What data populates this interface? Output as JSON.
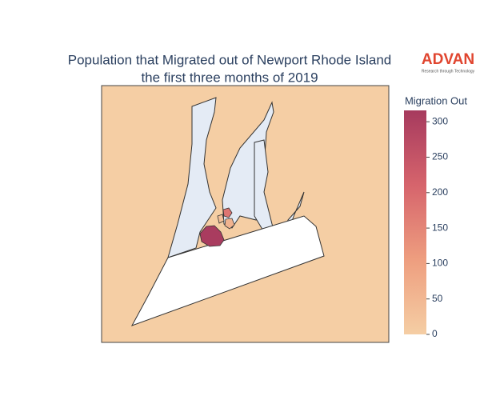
{
  "chart_data": {
    "type": "choropleth",
    "title": "Population that Migrated out of Newport Rhode Island",
    "subtitle": "the first three months of 2019",
    "logo": "ADVAN",
    "logo_tagline": "Research through Technology",
    "colorbar_title": "Migration Out",
    "clim": [
      0,
      316
    ],
    "cticks": [
      0,
      50,
      100,
      150,
      200,
      250,
      300
    ],
    "colorscale": [
      "#f5cea4",
      "#ee9e7f",
      "#d6646c",
      "#a63a5e"
    ],
    "values": [
      310,
      180,
      60,
      30
    ]
  }
}
